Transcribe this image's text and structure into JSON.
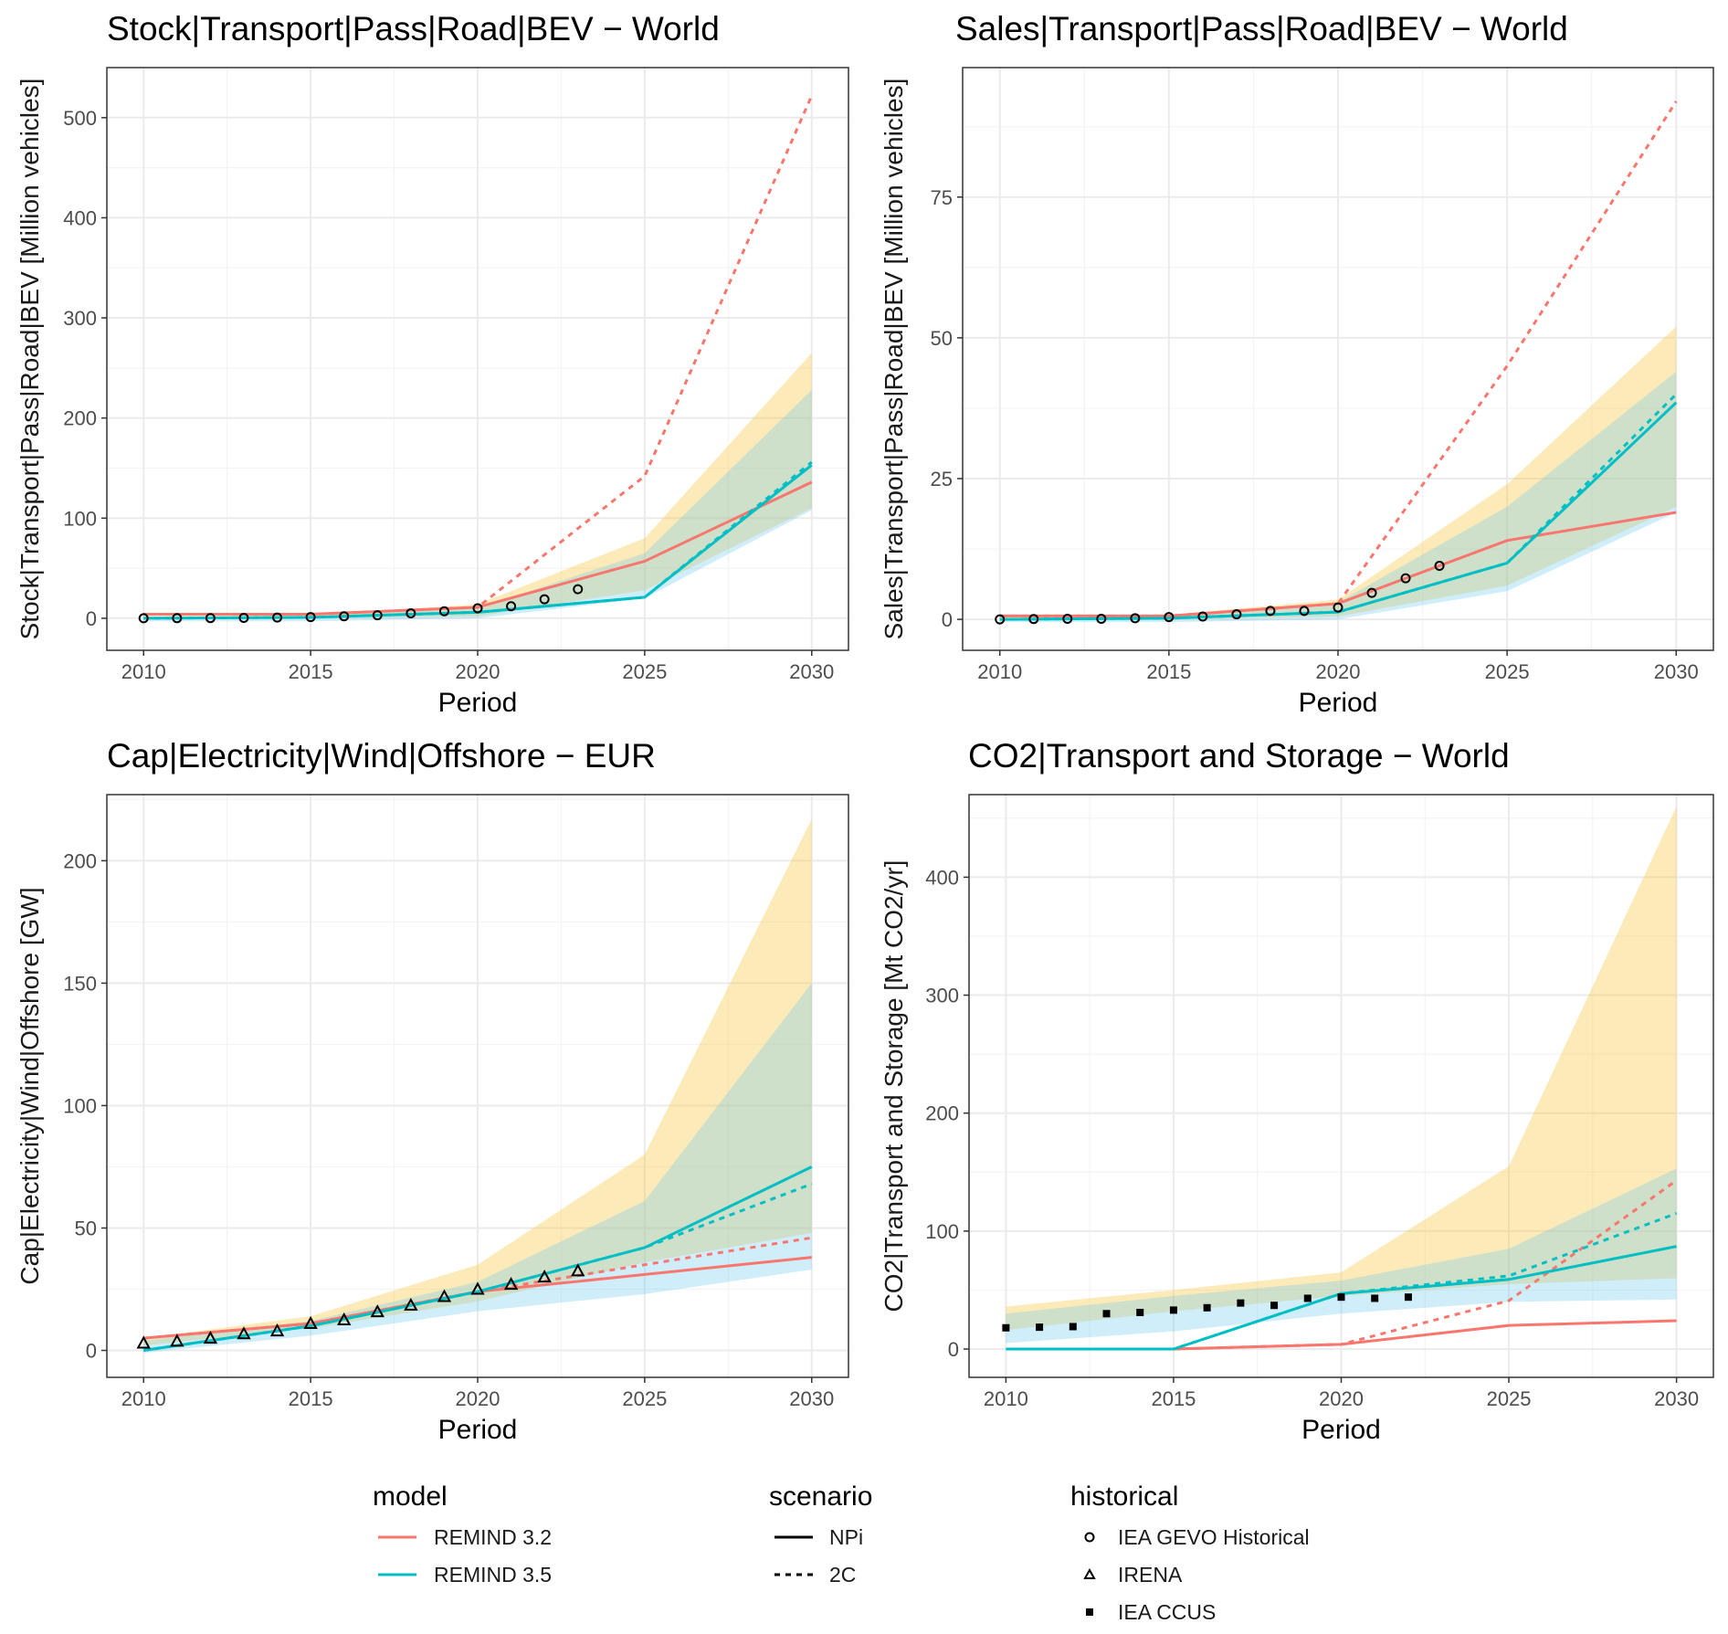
{
  "colors": {
    "remind32": "#F8766D",
    "remind35": "#00BFC4",
    "band_yellow": "#FBE3A6",
    "band_blue": "#C7E6F7",
    "band_overlap": "#C5E1CF",
    "grid_major": "#EBEBEB",
    "grid_minor": "#F4F4F4",
    "border": "#333333"
  },
  "legend": {
    "model_title": "model",
    "model_items": [
      "REMIND 3.2",
      "REMIND 3.5"
    ],
    "scenario_title": "scenario",
    "scenario_items": [
      "NPi",
      "2C"
    ],
    "historical_title": "historical",
    "historical_items": [
      "IEA GEVO Historical",
      "IRENA",
      "IEA CCUS"
    ]
  },
  "chart_data": [
    {
      "type": "line",
      "title": "Stock|Transport|Pass|Road|BEV − World",
      "xlabel": "Period",
      "ylabel": "Stock|Transport|Pass|Road|BEV [Million vehicles]",
      "xlim": [
        2008.9,
        2031.1
      ],
      "ylim": [
        -32,
        550
      ],
      "xticks": [
        2010,
        2015,
        2020,
        2025,
        2030
      ],
      "yticks": [
        0,
        100,
        200,
        300,
        400,
        500
      ],
      "x": [
        2010,
        2015,
        2020,
        2025,
        2030
      ],
      "bands": [
        {
          "name": "yellow",
          "lower": [
            0,
            0,
            2,
            28,
            110
          ],
          "upper": [
            2,
            3,
            14,
            80,
            265
          ]
        },
        {
          "name": "blue",
          "lower": [
            -3,
            -3,
            0,
            20,
            108
          ],
          "upper": [
            1,
            2,
            10,
            65,
            228
          ]
        }
      ],
      "series": [
        {
          "model": "REMIND 3.2",
          "scenario": "NPi",
          "values": [
            4,
            4,
            11,
            57,
            136
          ]
        },
        {
          "model": "REMIND 3.2",
          "scenario": "2C",
          "values": [
            4,
            4,
            11,
            142,
            522
          ]
        },
        {
          "model": "REMIND 3.5",
          "scenario": "NPi",
          "values": [
            0,
            1,
            6,
            21,
            153
          ]
        },
        {
          "model": "REMIND 3.5",
          "scenario": "2C",
          "values": [
            0,
            1,
            6,
            21,
            156
          ]
        }
      ],
      "historical": [
        {
          "source": "IEA GEVO Historical",
          "x": [
            2010,
            2011,
            2012,
            2013,
            2014,
            2015,
            2016,
            2017,
            2018,
            2019,
            2020,
            2021,
            2022,
            2023
          ],
          "values": [
            0,
            0.1,
            0.2,
            0.4,
            0.7,
            1.2,
            2,
            3,
            5,
            7,
            10,
            12,
            19,
            29
          ]
        }
      ]
    },
    {
      "type": "line",
      "title": "Sales|Transport|Pass|Road|BEV − World",
      "xlabel": "Period",
      "ylabel": "Sales|Transport|Pass|Road|BEV [Million vehicles]",
      "xlim": [
        2008.9,
        2031.1
      ],
      "ylim": [
        -5.5,
        98
      ],
      "xticks": [
        2010,
        2015,
        2020,
        2025,
        2030
      ],
      "yticks": [
        0,
        25,
        50,
        75
      ],
      "x": [
        2010,
        2015,
        2020,
        2025,
        2030
      ],
      "bands": [
        {
          "name": "yellow",
          "lower": [
            0,
            0,
            0.5,
            6,
            20
          ],
          "upper": [
            0.5,
            0.8,
            3.5,
            24,
            52
          ]
        },
        {
          "name": "blue",
          "lower": [
            -0.5,
            -0.5,
            0,
            5,
            19
          ],
          "upper": [
            0.2,
            0.5,
            3,
            20,
            44
          ]
        }
      ],
      "series": [
        {
          "model": "REMIND 3.2",
          "scenario": "NPi",
          "values": [
            0.6,
            0.6,
            2.8,
            14,
            19
          ]
        },
        {
          "model": "REMIND 3.2",
          "scenario": "2C",
          "values": [
            0.6,
            0.6,
            2.8,
            45,
            92
          ]
        },
        {
          "model": "REMIND 3.5",
          "scenario": "NPi",
          "values": [
            0,
            0.2,
            1.3,
            10,
            38.5
          ]
        },
        {
          "model": "REMIND 3.5",
          "scenario": "2C",
          "values": [
            0,
            0.2,
            1.3,
            10,
            40
          ]
        }
      ],
      "historical": [
        {
          "source": "IEA GEVO Historical",
          "x": [
            2010,
            2011,
            2012,
            2013,
            2014,
            2015,
            2016,
            2017,
            2018,
            2019,
            2020,
            2021,
            2022,
            2023
          ],
          "values": [
            0,
            0.05,
            0.1,
            0.1,
            0.2,
            0.4,
            0.5,
            0.9,
            1.5,
            1.5,
            2.1,
            4.7,
            7.3,
            9.5
          ]
        }
      ]
    },
    {
      "type": "line",
      "title": "Cap|Electricity|Wind|Offshore − EUR",
      "xlabel": "Period",
      "ylabel": "Cap|Electricity|Wind|Offshore [GW]",
      "xlim": [
        2008.9,
        2031.1
      ],
      "ylim": [
        -11,
        227
      ],
      "xticks": [
        2010,
        2015,
        2020,
        2025,
        2030
      ],
      "yticks": [
        0,
        50,
        100,
        150,
        200
      ],
      "x": [
        2010,
        2015,
        2020,
        2025,
        2030
      ],
      "bands": [
        {
          "name": "yellow",
          "lower": [
            2,
            9,
            20,
            36,
            48
          ],
          "upper": [
            5,
            14,
            35,
            80,
            217
          ]
        },
        {
          "name": "blue",
          "lower": [
            -1,
            6,
            16,
            23,
            33
          ],
          "upper": [
            4,
            12,
            28,
            61,
            150
          ]
        }
      ],
      "series": [
        {
          "model": "REMIND 3.2",
          "scenario": "NPi",
          "values": [
            5,
            11,
            24,
            31,
            38
          ]
        },
        {
          "model": "REMIND 3.2",
          "scenario": "2C",
          "values": [
            5,
            11,
            24,
            35,
            46
          ]
        },
        {
          "model": "REMIND 3.5",
          "scenario": "NPi",
          "values": [
            0,
            10,
            24,
            42,
            75
          ]
        },
        {
          "model": "REMIND 3.5",
          "scenario": "2C",
          "values": [
            0,
            10,
            24,
            42,
            68
          ]
        }
      ],
      "historical": [
        {
          "source": "IRENA",
          "x": [
            2010,
            2011,
            2012,
            2013,
            2014,
            2015,
            2016,
            2017,
            2018,
            2019,
            2020,
            2021,
            2022,
            2023
          ],
          "values": [
            3,
            3.8,
            5,
            6.8,
            8,
            11,
            12.5,
            15.8,
            18.5,
            22,
            25,
            27,
            30,
            32.5
          ]
        }
      ]
    },
    {
      "type": "line",
      "title": "CO2|Transport and Storage − World",
      "xlabel": "Period",
      "ylabel": "CO2|Transport and Storage [Mt CO2/yr]",
      "xlim": [
        2008.9,
        2031.1
      ],
      "ylim": [
        -24,
        470
      ],
      "xticks": [
        2010,
        2015,
        2020,
        2025,
        2030
      ],
      "yticks": [
        0,
        100,
        200,
        300,
        400
      ],
      "x": [
        2010,
        2015,
        2020,
        2025,
        2030
      ],
      "bands": [
        {
          "name": "yellow",
          "lower": [
            16,
            32,
            45,
            55,
            60
          ],
          "upper": [
            36,
            50,
            65,
            155,
            460
          ]
        },
        {
          "name": "blue",
          "lower": [
            5,
            15,
            30,
            40,
            42
          ],
          "upper": [
            30,
            45,
            58,
            85,
            153
          ]
        }
      ],
      "series": [
        {
          "model": "REMIND 3.2",
          "scenario": "NPi",
          "values": [
            null,
            0,
            4,
            20,
            24
          ]
        },
        {
          "model": "REMIND 3.2",
          "scenario": "2C",
          "values": [
            null,
            0,
            4,
            41,
            143
          ]
        },
        {
          "model": "REMIND 3.5",
          "scenario": "NPi",
          "values": [
            0,
            0,
            47,
            59,
            87
          ]
        },
        {
          "model": "REMIND 3.5",
          "scenario": "2C",
          "values": [
            0,
            0,
            47,
            62,
            115
          ]
        }
      ],
      "historical": [
        {
          "source": "IEA CCUS",
          "x": [
            2010,
            2011,
            2012,
            2013,
            2014,
            2015,
            2016,
            2017,
            2018,
            2019,
            2020,
            2021,
            2022
          ],
          "values": [
            18,
            18.5,
            19,
            30,
            31,
            33,
            35,
            39,
            37,
            43,
            44,
            43,
            44
          ]
        }
      ]
    }
  ]
}
